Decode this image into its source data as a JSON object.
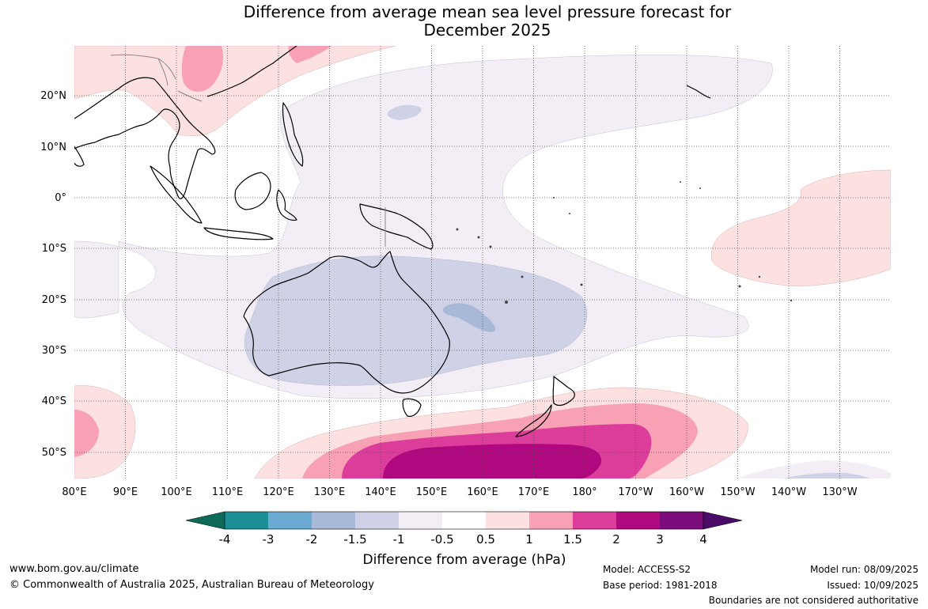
{
  "title": {
    "line1": "Difference from average mean sea level pressure forecast for",
    "line2": "December 2025"
  },
  "map": {
    "lat_labels": [
      "20°N",
      "10°N",
      "0°",
      "10°S",
      "20°S",
      "30°S",
      "40°S",
      "50°S"
    ],
    "lon_labels": [
      "80°E",
      "90°E",
      "100°E",
      "110°E",
      "120°E",
      "130°E",
      "140°E",
      "150°E",
      "160°E",
      "170°E",
      "180°",
      "170°W",
      "160°W",
      "150°W",
      "140°W",
      "130°W"
    ]
  },
  "colorbar": {
    "label": "Difference from average (hPa)",
    "ticks": [
      "-4",
      "-3",
      "-2",
      "-1.5",
      "-1",
      "-0.5",
      "0.5",
      "1",
      "1.5",
      "2",
      "3",
      "4"
    ],
    "colors": {
      "lt_neg4": "#0d6a59",
      "neg4_neg3": "#1a8f96",
      "neg3_neg2": "#6aa9d2",
      "neg2_neg1_5": "#a8b9d8",
      "neg1_5_neg1": "#cfd2e6",
      "neg1_neg0_5": "#f3eef6",
      "neg0_5_0_5": "#ffffff",
      "p0_5_p1": "#fde0e0",
      "p1_p1_5": "#f8a0b4",
      "p1_5_p2": "#dc3c9a",
      "p2_p3": "#b0087e",
      "p3_p4": "#7c0c7c",
      "gt_p4": "#4a0a68"
    }
  },
  "footer": {
    "website": "www.bom.gov.au/climate",
    "copyright": "© Commonwealth of Australia 2025, Australian Bureau of Meteorology",
    "model": "Model: ACCESS-S2",
    "base_period": "Base period: 1981-2018",
    "model_run": "Model run: 08/09/2025",
    "issued": "Issued: 10/09/2025",
    "disclaimer": "Boundaries are not considered authoritative"
  }
}
